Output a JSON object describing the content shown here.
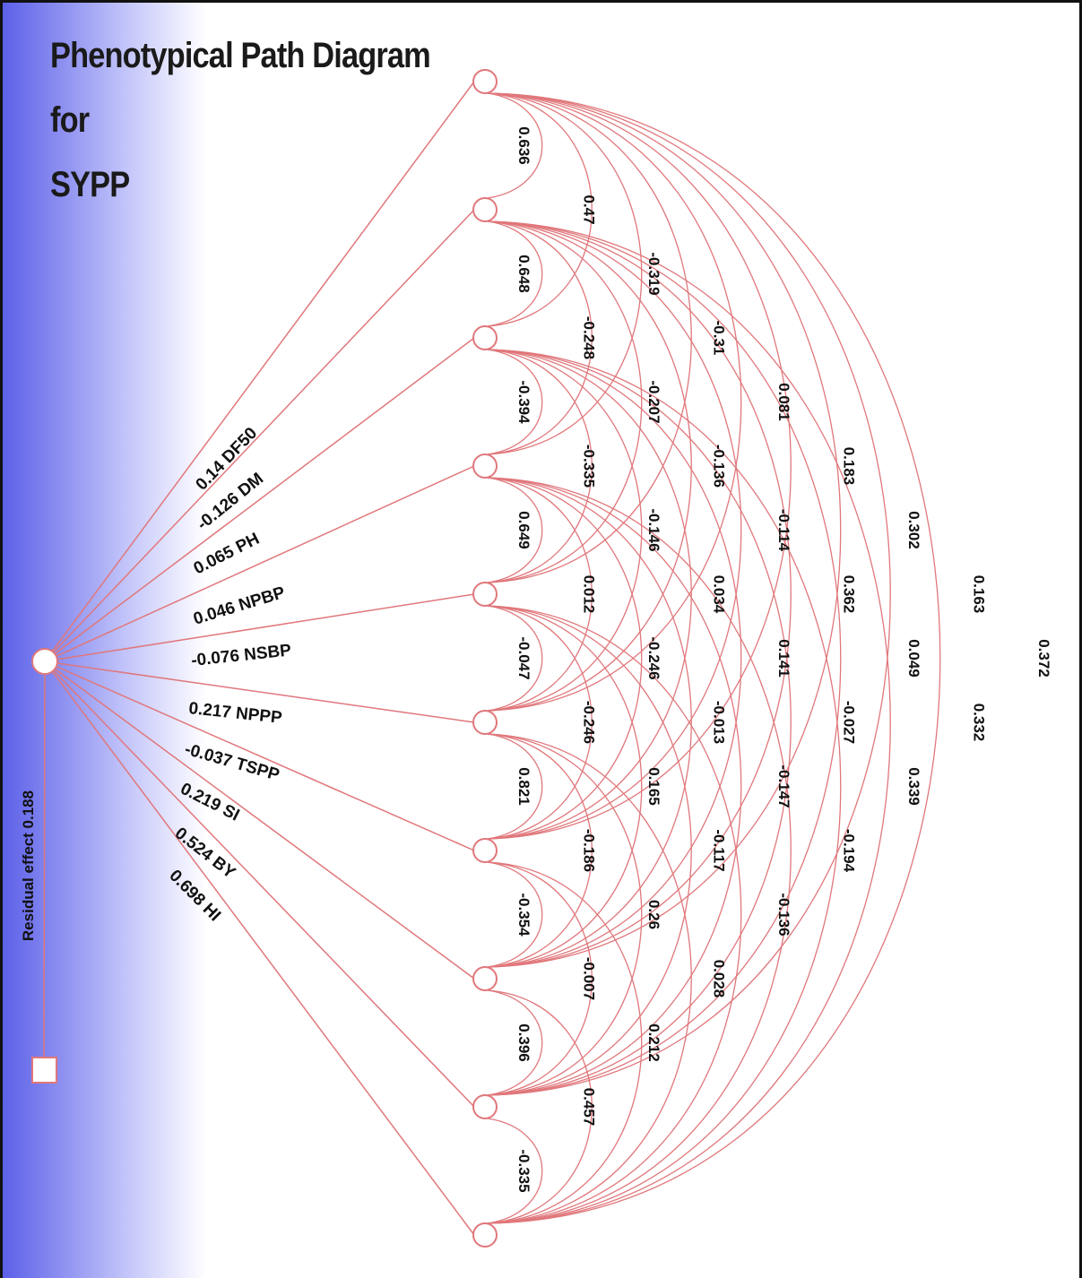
{
  "title": [
    "Phenotypical Path Diagram for",
    "SYPP"
  ],
  "residual": {
    "label": "Residual effect",
    "value": "0.188"
  },
  "traits": [
    "DF50",
    "DM",
    "PH",
    "NPBP",
    "NSBP",
    "NPPP",
    "TSPP",
    "SI",
    "BY",
    "HI"
  ],
  "direct_effects": [
    "0.14",
    "-0.126",
    "0.065",
    "0.046",
    "-0.076",
    "0.217",
    "-0.037",
    "0.219",
    "0.524",
    "0.698"
  ],
  "correlations": [
    [
      "0.636",
      "0.648",
      "-0.394",
      "0.649",
      "-0.047",
      "0.821",
      "-0.354",
      "0.396",
      "-0.335"
    ],
    [
      "0.47",
      "-0.248",
      "-0.335",
      "0.012",
      "-0.246",
      "-0.186",
      "-0.007",
      "0.457"
    ],
    [
      "-0.319",
      "-0.207",
      "-0.146",
      "-0.246",
      "0.165",
      "0.26",
      "0.212"
    ],
    [
      "-0.31",
      "-0.136",
      "0.034",
      "-0.013",
      "-0.117",
      "0.028"
    ],
    [
      "0.081",
      "-0.114",
      "0.141",
      "-0.147",
      "-0.136"
    ],
    [
      "0.183",
      "0.362",
      "-0.027",
      "-0.194"
    ],
    [
      "0.302",
      "0.049",
      "0.339"
    ],
    [
      "0.163",
      "0.332"
    ],
    [
      "0.372"
    ]
  ],
  "colors": {
    "line": "#e0777b",
    "node_fill": "#ffffff",
    "text": "#111111",
    "gradient": "#5a5ee8"
  }
}
